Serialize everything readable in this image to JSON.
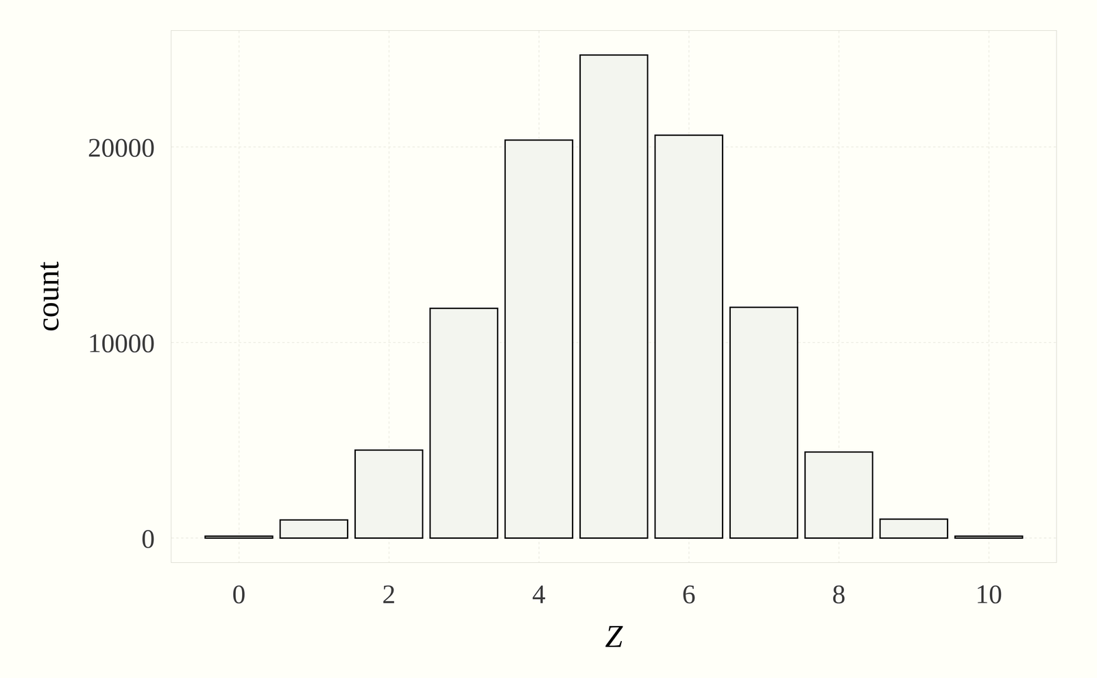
{
  "chart_data": {
    "type": "bar",
    "x_label": "Z",
    "y_label": "count",
    "x": [
      0,
      1,
      2,
      3,
      4,
      5,
      6,
      7,
      8,
      9,
      10
    ],
    "values": [
      100,
      930,
      4500,
      11750,
      20350,
      24700,
      20600,
      11800,
      4400,
      970,
      100
    ],
    "color": "#f3f5ef",
    "xlim": [
      -0.9,
      10.9
    ],
    "xticks": [
      0,
      2,
      4,
      6,
      8,
      10
    ],
    "ylim": [
      -1235,
      25940
    ],
    "yticks": [
      0,
      10000,
      20000
    ],
    "grid": true
  }
}
